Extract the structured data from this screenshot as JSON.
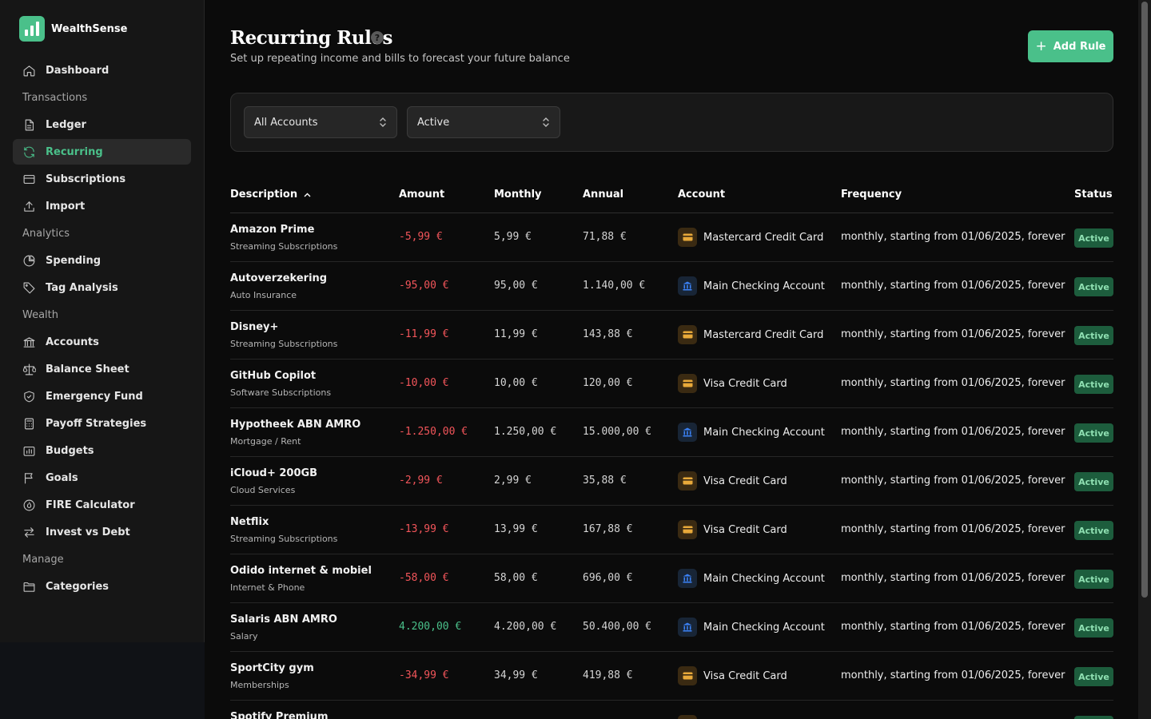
{
  "app": {
    "name": "WealthSense"
  },
  "sidebar": {
    "dashboard": "Dashboard",
    "sections": {
      "transactions": "Transactions",
      "analytics": "Analytics",
      "wealth": "Wealth",
      "manage": "Manage"
    },
    "items": {
      "ledger": "Ledger",
      "recurring": "Recurring",
      "subscriptions": "Subscriptions",
      "import": "Import",
      "spending": "Spending",
      "tag_analysis": "Tag Analysis",
      "accounts": "Accounts",
      "balance_sheet": "Balance Sheet",
      "emergency_fund": "Emergency Fund",
      "payoff_strategies": "Payoff Strategies",
      "budgets": "Budgets",
      "goals": "Goals",
      "fire_calculator": "FIRE Calculator",
      "invest_vs_debt": "Invest vs Debt",
      "categories": "Categories"
    },
    "active": "recurring"
  },
  "header": {
    "title": "Recurring Rules",
    "help": "?",
    "subtitle": "Set up repeating income and bills to forecast your future balance",
    "add_button": "Add Rule",
    "add_icon": "+"
  },
  "filters": {
    "account": "All Accounts",
    "status": "Active"
  },
  "table": {
    "columns": {
      "description": "Description",
      "amount": "Amount",
      "monthly": "Monthly",
      "annual": "Annual",
      "account": "Account",
      "frequency": "Frequency",
      "status": "Status"
    },
    "sort_indicator": "chevron-up-icon",
    "rows": [
      {
        "name": "Amazon Prime",
        "category": "Streaming Subscriptions",
        "amount": "-5,99 €",
        "monthly": "5,99 €",
        "annual": "71,88 €",
        "account": "Mastercard Credit Card",
        "account_type": "card",
        "frequency": "monthly, starting from 01/06/2025, forever",
        "status": "Active",
        "sign": "neg"
      },
      {
        "name": "Autoverzekering",
        "category": "Auto Insurance",
        "amount": "-95,00 €",
        "monthly": "95,00 €",
        "annual": "1.140,00 €",
        "account": "Main Checking Account",
        "account_type": "bank",
        "frequency": "monthly, starting from 01/06/2025, forever",
        "status": "Active",
        "sign": "neg"
      },
      {
        "name": "Disney+",
        "category": "Streaming Subscriptions",
        "amount": "-11,99 €",
        "monthly": "11,99 €",
        "annual": "143,88 €",
        "account": "Mastercard Credit Card",
        "account_type": "card",
        "frequency": "monthly, starting from 01/06/2025, forever",
        "status": "Active",
        "sign": "neg"
      },
      {
        "name": "GitHub Copilot",
        "category": "Software Subscriptions",
        "amount": "-10,00 €",
        "monthly": "10,00 €",
        "annual": "120,00 €",
        "account": "Visa Credit Card",
        "account_type": "card",
        "frequency": "monthly, starting from 01/06/2025, forever",
        "status": "Active",
        "sign": "neg"
      },
      {
        "name": "Hypotheek ABN AMRO",
        "category": "Mortgage / Rent",
        "amount": "-1.250,00 €",
        "monthly": "1.250,00 €",
        "annual": "15.000,00 €",
        "account": "Main Checking Account",
        "account_type": "bank",
        "frequency": "monthly, starting from 01/06/2025, forever",
        "status": "Active",
        "sign": "neg"
      },
      {
        "name": "iCloud+ 200GB",
        "category": "Cloud Services",
        "amount": "-2,99 €",
        "monthly": "2,99 €",
        "annual": "35,88 €",
        "account": "Visa Credit Card",
        "account_type": "card",
        "frequency": "monthly, starting from 01/06/2025, forever",
        "status": "Active",
        "sign": "neg"
      },
      {
        "name": "Netflix",
        "category": "Streaming Subscriptions",
        "amount": "-13,99 €",
        "monthly": "13,99 €",
        "annual": "167,88 €",
        "account": "Visa Credit Card",
        "account_type": "card",
        "frequency": "monthly, starting from 01/06/2025, forever",
        "status": "Active",
        "sign": "neg"
      },
      {
        "name": "Odido internet & mobiel",
        "category": "Internet & Phone",
        "amount": "-58,00 €",
        "monthly": "58,00 €",
        "annual": "696,00 €",
        "account": "Main Checking Account",
        "account_type": "bank",
        "frequency": "monthly, starting from 01/06/2025, forever",
        "status": "Active",
        "sign": "neg"
      },
      {
        "name": "Salaris ABN AMRO",
        "category": "Salary",
        "amount": "4.200,00 €",
        "monthly": "4.200,00 €",
        "annual": "50.400,00 €",
        "account": "Main Checking Account",
        "account_type": "bank",
        "frequency": "monthly, starting from 01/06/2025, forever",
        "status": "Active",
        "sign": "pos"
      },
      {
        "name": "SportCity gym",
        "category": "Memberships",
        "amount": "-34,99 €",
        "monthly": "34,99 €",
        "annual": "419,88 €",
        "account": "Visa Credit Card",
        "account_type": "card",
        "frequency": "monthly, starting from 01/06/2025, forever",
        "status": "Active",
        "sign": "neg"
      },
      {
        "name": "Spotify Premium",
        "category": "",
        "amount": "",
        "monthly": "",
        "annual": "",
        "account": "",
        "account_type": "card",
        "frequency": "",
        "status": "",
        "sign": "neg"
      }
    ]
  },
  "colors": {
    "accent": "#4ac08a",
    "negative": "#f2555a",
    "badge_bg": "#1d5d3d",
    "badge_text": "#8fe0b2",
    "card_icon": "#e8a93a",
    "bank_icon": "#3b82f6"
  }
}
